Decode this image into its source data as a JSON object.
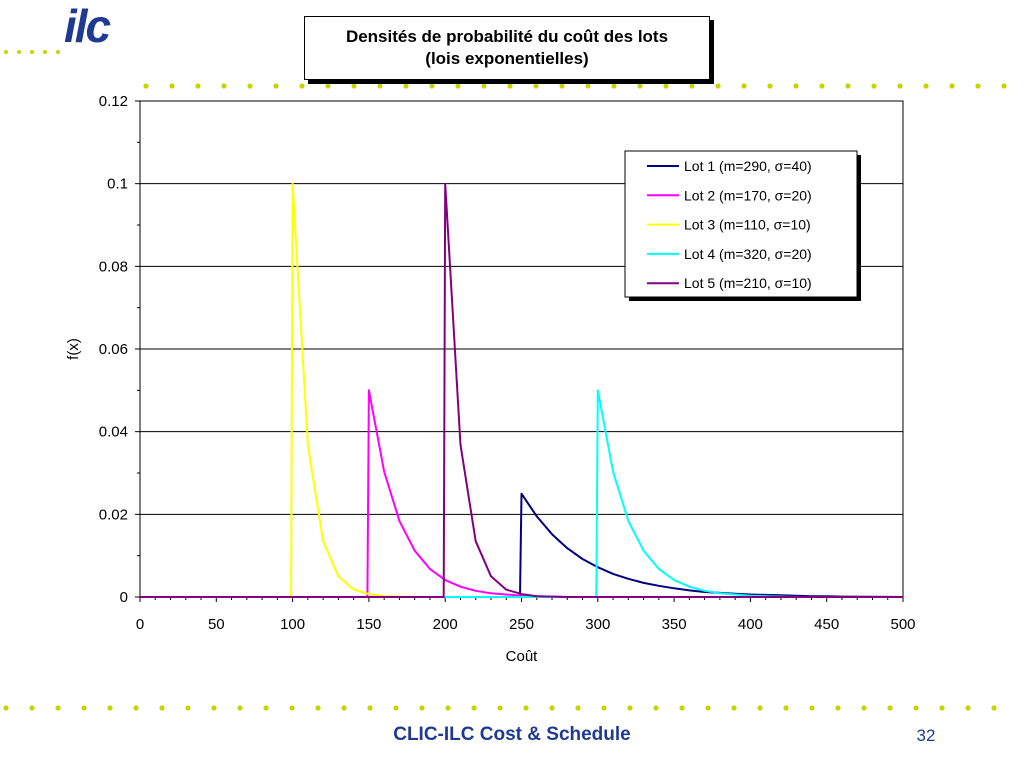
{
  "slide": {
    "logo_text": "ilc",
    "footer_title": "CLIC-ILC Cost & Schedule",
    "page_number": "32",
    "dot_color": "#c8d400",
    "logo_color": "#1f3a93",
    "footer_color": "#1f3a93"
  },
  "chart_data": {
    "type": "line",
    "title": "Densités de probabilité du coût des lots",
    "subtitle": "(lois exponentielles)",
    "xlabel": "Coût",
    "ylabel": "f(x)",
    "xlim": [
      0,
      500
    ],
    "ylim": [
      0,
      0.12
    ],
    "x_ticks": [
      "0",
      "50",
      "100",
      "150",
      "200",
      "250",
      "300",
      "350",
      "400",
      "450",
      "500"
    ],
    "y_ticks": [
      "0",
      "0.02",
      "0.04",
      "0.06",
      "0.08",
      "0.1",
      "0.12"
    ],
    "grid": "horizontal major gridlines",
    "legend_position": "top-right",
    "series": [
      {
        "name": "Lot 1 (m=290, σ=40)",
        "color": "#000080",
        "points": [
          [
            0,
            0
          ],
          [
            249,
            0
          ],
          [
            250,
            0.025
          ],
          [
            260,
            0.0195
          ],
          [
            270,
            0.0152
          ],
          [
            280,
            0.0118
          ],
          [
            290,
            0.0092
          ],
          [
            300,
            0.0072
          ],
          [
            310,
            0.0056
          ],
          [
            320,
            0.0044
          ],
          [
            330,
            0.0034
          ],
          [
            340,
            0.0027
          ],
          [
            350,
            0.0021
          ],
          [
            360,
            0.0016
          ],
          [
            370,
            0.0012
          ],
          [
            380,
            0.001
          ],
          [
            390,
            0.0008
          ],
          [
            400,
            0.0006
          ],
          [
            410,
            0.0005
          ],
          [
            420,
            0.0004
          ],
          [
            430,
            0.0003
          ],
          [
            440,
            0.0002
          ],
          [
            450,
            0.0002
          ],
          [
            460,
            0.0001
          ],
          [
            500,
            0
          ]
        ]
      },
      {
        "name": "Lot 2 (m=170, σ=20)",
        "color": "#ff00ff",
        "points": [
          [
            0,
            0
          ],
          [
            149,
            0
          ],
          [
            150,
            0.05
          ],
          [
            160,
            0.0303
          ],
          [
            170,
            0.0184
          ],
          [
            180,
            0.0112
          ],
          [
            190,
            0.0068
          ],
          [
            200,
            0.0041
          ],
          [
            210,
            0.0025
          ],
          [
            220,
            0.0015
          ],
          [
            230,
            0.0009
          ],
          [
            240,
            0.0006
          ],
          [
            250,
            0.0003
          ],
          [
            260,
            0.0002
          ],
          [
            270,
            0.0001
          ],
          [
            280,
            0
          ],
          [
            500,
            0
          ]
        ]
      },
      {
        "name": "Lot 3 (m=110, σ=10)",
        "color": "#ffff00",
        "points": [
          [
            0,
            0
          ],
          [
            99,
            0
          ],
          [
            100,
            0.1
          ],
          [
            110,
            0.0368
          ],
          [
            120,
            0.0135
          ],
          [
            130,
            0.005
          ],
          [
            140,
            0.0018
          ],
          [
            150,
            0.0007
          ],
          [
            160,
            0.0002
          ],
          [
            170,
            0.0001
          ],
          [
            180,
            0
          ],
          [
            500,
            0
          ]
        ]
      },
      {
        "name": "Lot 4 (m=320, σ=20)",
        "color": "#00ffff",
        "points": [
          [
            0,
            0
          ],
          [
            299,
            0
          ],
          [
            300,
            0.05
          ],
          [
            310,
            0.0303
          ],
          [
            320,
            0.0184
          ],
          [
            330,
            0.0112
          ],
          [
            340,
            0.0068
          ],
          [
            350,
            0.0041
          ],
          [
            360,
            0.0025
          ],
          [
            370,
            0.0015
          ],
          [
            380,
            0.0009
          ],
          [
            390,
            0.0006
          ],
          [
            400,
            0.0003
          ],
          [
            410,
            0.0002
          ],
          [
            420,
            0.0001
          ],
          [
            430,
            0
          ],
          [
            500,
            0
          ]
        ]
      },
      {
        "name": "Lot 5 (m=210, σ=10)",
        "color": "#800080",
        "points": [
          [
            0,
            0
          ],
          [
            199,
            0
          ],
          [
            200,
            0.1
          ],
          [
            210,
            0.0368
          ],
          [
            220,
            0.0135
          ],
          [
            230,
            0.005
          ],
          [
            240,
            0.0018
          ],
          [
            250,
            0.0007
          ],
          [
            260,
            0.0002
          ],
          [
            270,
            0.0001
          ],
          [
            280,
            0
          ],
          [
            500,
            0
          ]
        ]
      }
    ]
  }
}
